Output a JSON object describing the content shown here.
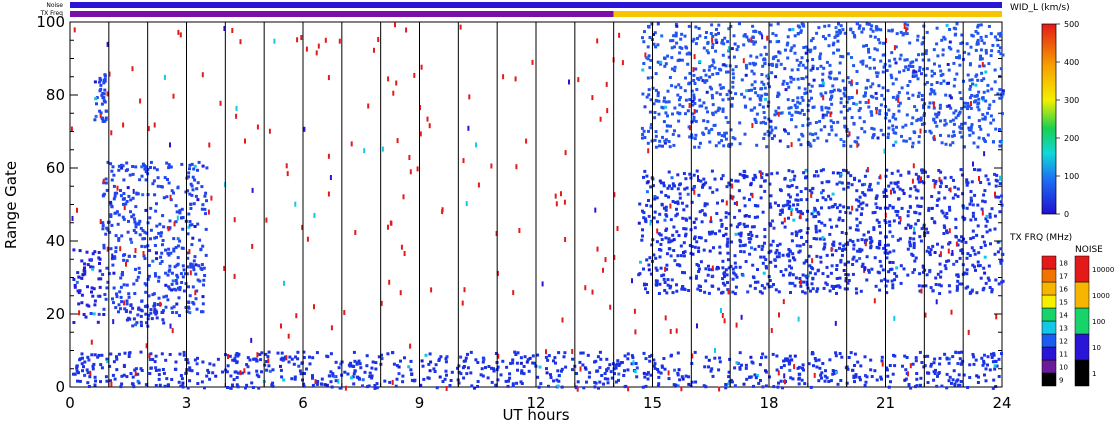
{
  "chart_data": {
    "type": "heatmap",
    "xlabel": "UT hours",
    "ylabel": "Range Gate",
    "x_ticks": [
      "0",
      "3",
      "6",
      "9",
      "12",
      "15",
      "18",
      "21",
      "24"
    ],
    "y_ticks": [
      "0",
      "20",
      "40",
      "60",
      "80",
      "100"
    ],
    "xlim": [
      0,
      24
    ],
    "ylim": [
      0,
      100
    ],
    "grid": "vertical hourly lines",
    "status_bars": [
      {
        "label": "Noise",
        "segments": [
          {
            "from": 0,
            "to": 24,
            "color": "#2a14d6"
          }
        ]
      },
      {
        "label": "TX Freq",
        "segments": [
          {
            "from": 0,
            "to": 14,
            "color": "#7a10a8"
          },
          {
            "from": 14,
            "to": 24,
            "color": "#f7c400"
          }
        ]
      }
    ],
    "colorbar_width": {
      "title": "WID_L (km/s)",
      "ticks": [
        "0",
        "100",
        "200",
        "300",
        "400",
        "500"
      ],
      "range": [
        0,
        500
      ]
    },
    "colorbar_txfreq": {
      "title": "TX FRQ (MHz)",
      "ticks": [
        "9",
        "10",
        "11",
        "12",
        "13",
        "14",
        "15",
        "16",
        "17",
        "18"
      ],
      "colors": [
        "#000000",
        "#6a1a9a",
        "#2a14d6",
        "#1d5cf0",
        "#13c7e6",
        "#18d36a",
        "#f6f000",
        "#f7b500",
        "#f27300",
        "#e41a1a"
      ]
    },
    "colorbar_noise": {
      "title": "NOISE",
      "ticks": [
        "1",
        "10",
        "100",
        "1000",
        "10000"
      ],
      "colors": [
        "#000000",
        "#2a14d6",
        "#18d36a",
        "#f7b500",
        "#e41a1a"
      ]
    },
    "series": [
      {
        "values": [
          {
            "x_from": 0.0,
            "x_to": 0.8,
            "y_from": 18,
            "y_to": 38,
            "color": "#2222dd"
          },
          {
            "x_from": 0.8,
            "x_to": 3.5,
            "y_from": 20,
            "y_to": 62,
            "color": "#2244ee"
          },
          {
            "x_from": 1.2,
            "x_to": 2.4,
            "y_from": 17,
            "y_to": 23,
            "color": "#2233dd"
          },
          {
            "x_from": 0.6,
            "x_to": 0.9,
            "y_from": 72,
            "y_to": 86,
            "color": "#2244ee"
          },
          {
            "x_from": 14.6,
            "x_to": 24.0,
            "y_from": 26,
            "y_to": 60,
            "color": "#1a33e6"
          },
          {
            "x_from": 14.7,
            "x_to": 24.0,
            "y_from": 66,
            "y_to": 100,
            "color": "#2255f0"
          },
          {
            "x_from": 0.0,
            "x_to": 24.0,
            "y_from": 0,
            "y_to": 10,
            "color": "#1a33e6"
          }
        ]
      }
    ]
  }
}
